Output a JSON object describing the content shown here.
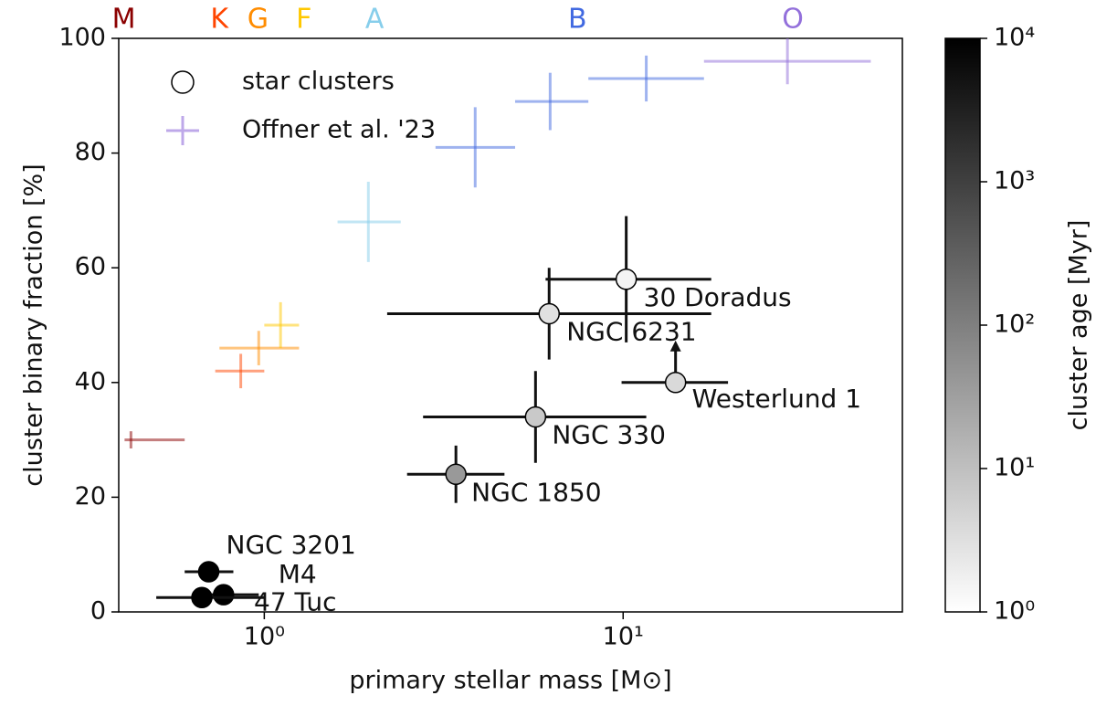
{
  "chart_data": {
    "type": "scatter",
    "xlabel": "primary stellar mass [M⊙]",
    "ylabel": "cluster binary fraction [%]",
    "xscale": "log",
    "xlim": [
      0.393,
      60
    ],
    "ylim": [
      0,
      100
    ],
    "xticks": [
      {
        "value": 1,
        "label": "10⁰"
      },
      {
        "value": 10,
        "label": "10¹"
      }
    ],
    "yticks": [
      0,
      20,
      40,
      60,
      80,
      100
    ],
    "legend": "upper left",
    "spectral_types": {
      "labels": [
        "M",
        "K",
        "G",
        "F",
        "A",
        "B",
        "O"
      ],
      "x": [
        0.406,
        0.75,
        0.96,
        1.29,
        2.03,
        7.46,
        29.7
      ],
      "colors": [
        "#8b0000",
        "#ff4500",
        "#ff8c00",
        "#ffc800",
        "#87ceeb",
        "#4169e1",
        "#9370db"
      ]
    },
    "series": [
      {
        "name": "star clusters",
        "labels": [
          "30 Doradus",
          "NGC 6231",
          "Westerlund 1",
          "NGC 330",
          "NGC 1850",
          "NGC 3201",
          "M4",
          "47 Tuc"
        ],
        "x": [
          10.2,
          6.22,
          14.0,
          5.7,
          3.42,
          0.7,
          0.77,
          0.67
        ],
        "values": [
          58,
          52,
          40,
          34,
          24,
          7,
          3,
          2.5
        ],
        "xmin": [
          6.08,
          2.2,
          9.9,
          2.77,
          2.5,
          0.6,
          0.63,
          0.5
        ],
        "xmax": [
          17.6,
          17.6,
          19.6,
          11.6,
          4.67,
          0.82,
          0.965,
          1.0
        ],
        "y_err": [
          11,
          8,
          null,
          8,
          5,
          null,
          null,
          null
        ],
        "y_lower_limit": [
          false,
          false,
          true,
          false,
          false,
          false,
          false,
          false
        ],
        "age": [
          1.5,
          3,
          4,
          7,
          40,
          10000,
          10000,
          10000
        ]
      },
      {
        "name": "Offner et al. '23",
        "color": "#9370db",
        "x": [
          0.425,
          0.86,
          0.965,
          1.11,
          1.95,
          3.87,
          6.26,
          11.6,
          28.7
        ],
        "values": [
          30,
          42,
          46,
          50,
          68,
          81,
          89,
          93,
          96
        ],
        "xmin": [
          0.408,
          0.73,
          0.75,
          1.0,
          1.6,
          3.0,
          5.0,
          8.0,
          16.8
        ],
        "xmax": [
          0.6,
          1.0,
          1.25,
          1.25,
          2.4,
          5.0,
          8.0,
          16.8,
          49
        ],
        "y_err": [
          1.5,
          3,
          3,
          4,
          7,
          7,
          5,
          4,
          4
        ],
        "colors": [
          "#8b0000",
          "#ff4500",
          "#ff8c00",
          "#ffc800",
          "#87ceeb",
          "#4169e1",
          "#4169e1",
          "#4169e1",
          "#9370db"
        ]
      }
    ],
    "colorbar": {
      "label": "cluster age [Myr]",
      "scale": "log",
      "lim": [
        1,
        10000
      ],
      "ticks": [
        {
          "value": 1,
          "label": "10⁰"
        },
        {
          "value": 10,
          "label": "10¹"
        },
        {
          "value": 100,
          "label": "10²"
        },
        {
          "value": 1000,
          "label": "10³"
        },
        {
          "value": 10000,
          "label": "10⁴"
        }
      ],
      "cmap": [
        "#ffffff",
        "#000000"
      ]
    }
  }
}
